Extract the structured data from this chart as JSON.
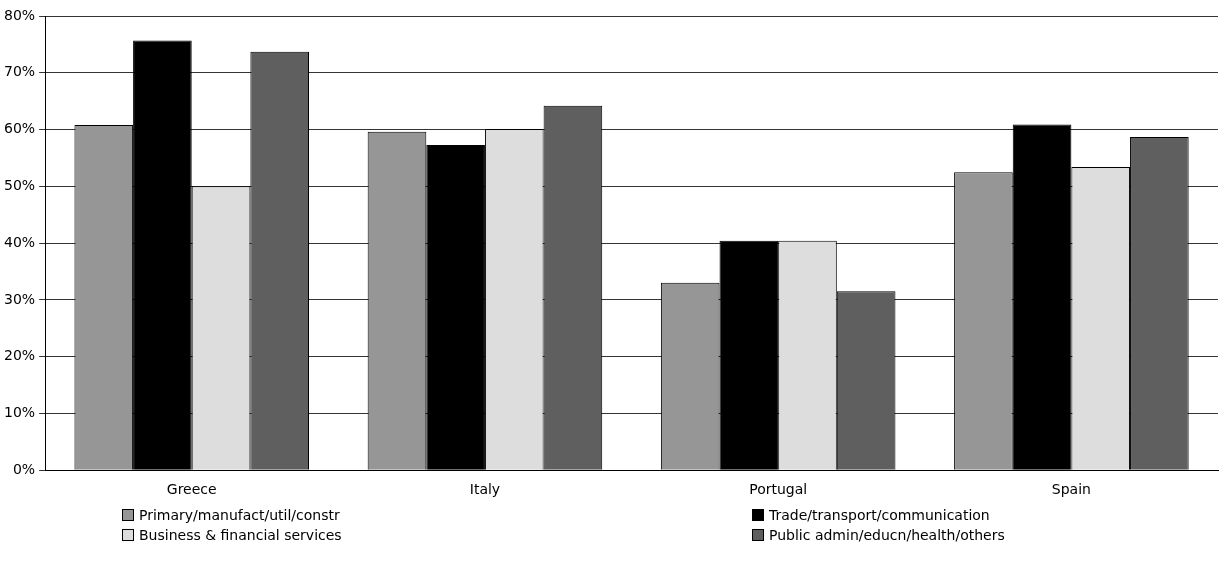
{
  "chart_data": {
    "type": "bar",
    "categories": [
      "Greece",
      "Italy",
      "Portugal",
      "Spain"
    ],
    "series": [
      {
        "name": "Primary/manufact/util/constr",
        "color": "#969696",
        "values": [
          60.8,
          59.6,
          33.0,
          52.5
        ]
      },
      {
        "name": "Trade/transport/communication",
        "color": "#000000",
        "values": [
          75.7,
          57.3,
          40.4,
          60.9
        ]
      },
      {
        "name": "Business & financial services",
        "color": "#dddddd",
        "values": [
          50.0,
          60.1,
          40.4,
          53.4
        ]
      },
      {
        "name": "Public admin/educn/health/others",
        "color": "#5f5f5f",
        "values": [
          73.7,
          64.2,
          31.5,
          58.7
        ]
      }
    ],
    "ylim": [
      0,
      80
    ],
    "yticks": [
      {
        "value": 0,
        "label": "0%"
      },
      {
        "value": 10,
        "label": "10%"
      },
      {
        "value": 20,
        "label": "20%"
      },
      {
        "value": 30,
        "label": "30%"
      },
      {
        "value": 40,
        "label": "40%"
      },
      {
        "value": 50,
        "label": "50%"
      },
      {
        "value": 60,
        "label": "60%"
      },
      {
        "value": 70,
        "label": "70%"
      },
      {
        "value": 80,
        "label": "80%"
      }
    ],
    "grid": "y",
    "legend": "bottom"
  }
}
